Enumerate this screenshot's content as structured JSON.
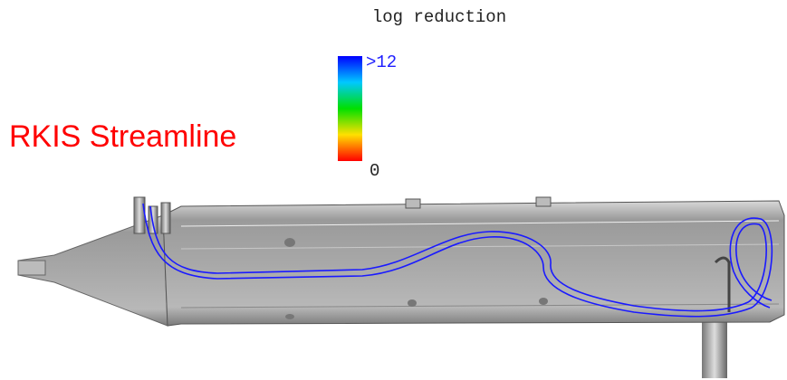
{
  "title": "RKIS Streamline",
  "colorbar": {
    "title": "log reduction",
    "max_label": ">12",
    "min_label": "0"
  }
}
